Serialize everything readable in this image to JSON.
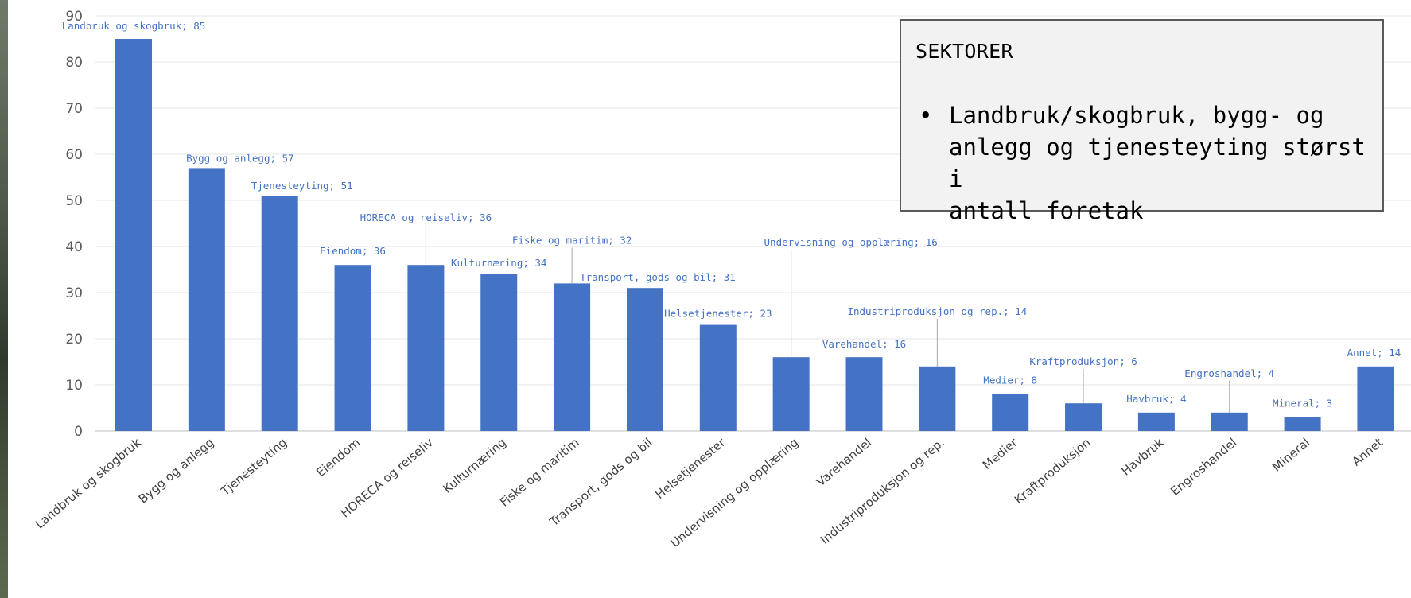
{
  "chart_data": {
    "type": "bar",
    "categories": [
      "Landbruk og skogbruk",
      "Bygg og anlegg",
      "Tjenesteyting",
      "Eiendom",
      "HORECA og reiseliv",
      "Kulturnæring",
      "Fiske og maritim",
      "Transport, gods og bil",
      "Helsetjenester",
      "Undervisning og opplæring",
      "Varehandel",
      "Industriproduksjon og rep.",
      "Medier",
      "Kraftproduksjon",
      "Havbruk",
      "Engroshandel",
      "Mineral",
      "Annet"
    ],
    "values": [
      85,
      57,
      51,
      36,
      36,
      34,
      32,
      31,
      23,
      16,
      16,
      14,
      8,
      6,
      4,
      4,
      3,
      14
    ],
    "data_labels": [
      "Landbruk og skogbruk; 85",
      "Bygg og anlegg; 57",
      "Tjenesteyting; 51",
      "Eiendom; 36",
      "HORECA og reiseliv; 36",
      "Kulturnæring; 34",
      "Fiske og maritim; 32",
      "Transport, gods og bil; 31",
      "Helsetjenester; 23",
      "Undervisning og opplæring; 16",
      "Varehandel; 16",
      "Industriproduksjon og rep.; 14",
      "Medier; 8",
      "Kraftproduksjon; 6",
      "Havbruk; 4",
      "Engroshandel; 4",
      "Mineral; 3",
      "Annet; 14"
    ],
    "ylim": [
      0,
      90
    ],
    "yticks": [
      0,
      10,
      20,
      30,
      40,
      50,
      60,
      70,
      80,
      90
    ],
    "grid": true,
    "legend": "none",
    "bar_color": "#4472C4",
    "label_color": "#4472C4"
  },
  "callout": {
    "title": "SEKTORER",
    "bullet": "•",
    "lines": [
      "Landbruk/skogbruk, bygg- og",
      "anlegg og tjenesteyting størst i",
      "antall foretak"
    ]
  }
}
